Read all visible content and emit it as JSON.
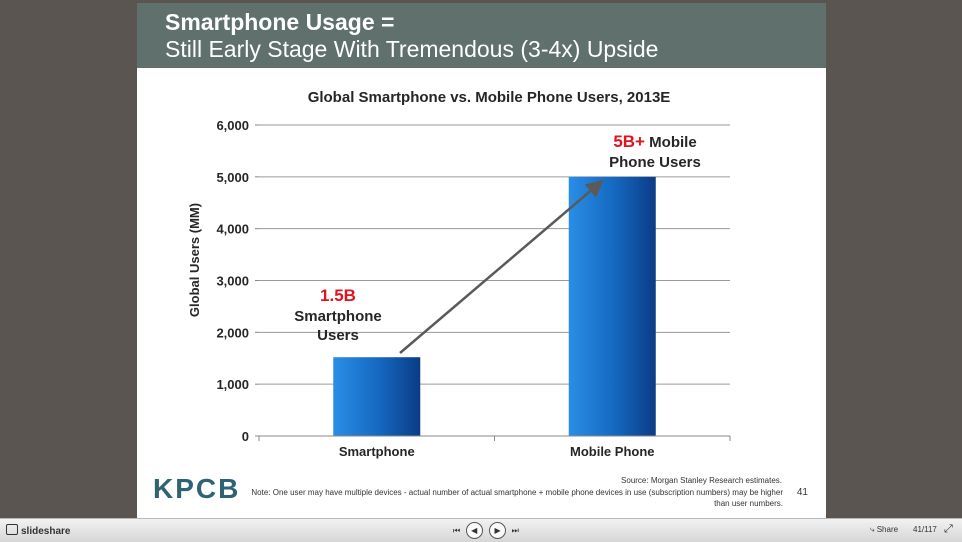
{
  "slide": {
    "title_line1": "Smartphone Usage =",
    "title_line2": "Still Early Stage With Tremendous (3-4x) Upside",
    "logo": "KPCB",
    "source": "Source: Morgan Stanley Research estimates.",
    "note": "Note: One user may have multiple devices - actual number of actual smartphone + mobile phone devices in use (subscription numbers) may be higher than user numbers.",
    "page_number": "41"
  },
  "chart_data": {
    "type": "bar",
    "title": "Global Smartphone vs. Mobile Phone Users, 2013E",
    "ylabel": "Global Users (MM)",
    "xlabel": "",
    "categories": [
      "Smartphone",
      "Mobile Phone"
    ],
    "values": [
      1520,
      5000
    ],
    "ylim": [
      0,
      6000
    ],
    "yticks": [
      0,
      1000,
      2000,
      3000,
      4000,
      5000,
      6000
    ],
    "ytick_labels": [
      "0",
      "1,000",
      "2,000",
      "3,000",
      "4,000",
      "5,000",
      "6,000"
    ],
    "grid": true,
    "bar_color": "#1560b0",
    "annotations": [
      {
        "highlight": "1.5B",
        "lines": [
          "Smartphone",
          "Users"
        ]
      },
      {
        "highlight": "5B+",
        "rest": " Mobile",
        "lines": [
          "Phone Users"
        ]
      }
    ]
  },
  "player": {
    "brand": "slideshare",
    "share_label": "Share",
    "counter": "41/117",
    "first_icon": "first-slide-icon",
    "prev_icon": "prev-icon",
    "next_icon": "next-icon",
    "last_icon": "last-slide-icon",
    "fullscreen_icon": "fullscreen-icon"
  }
}
